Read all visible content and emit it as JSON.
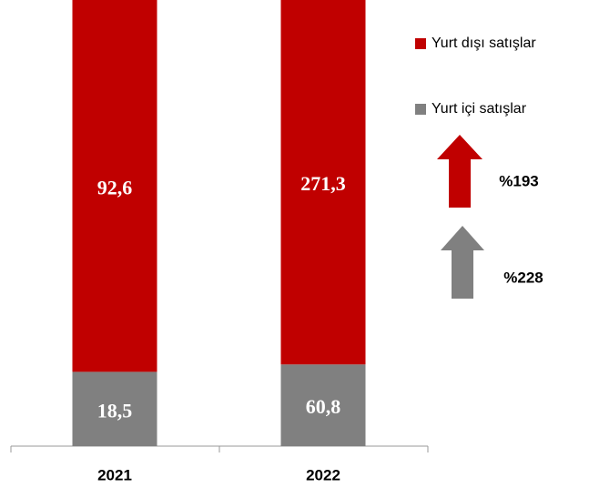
{
  "chart_data": {
    "type": "bar",
    "stacking": "percent",
    "categories": [
      "2021",
      "2022"
    ],
    "series": [
      {
        "name": "Yurt içi satışlar",
        "color": "#808080",
        "values": [
          18.5,
          60.8
        ],
        "value_labels": [
          "18,5",
          "60,8"
        ]
      },
      {
        "name": "Yurt dışı satışlar",
        "color": "#c00000",
        "values": [
          92.6,
          271.3
        ],
        "value_labels": [
          "92,6",
          "271,3"
        ]
      }
    ],
    "annotations": [
      {
        "text": "%193",
        "color": "#c00000"
      },
      {
        "text": "%228",
        "color": "#808080"
      }
    ]
  }
}
